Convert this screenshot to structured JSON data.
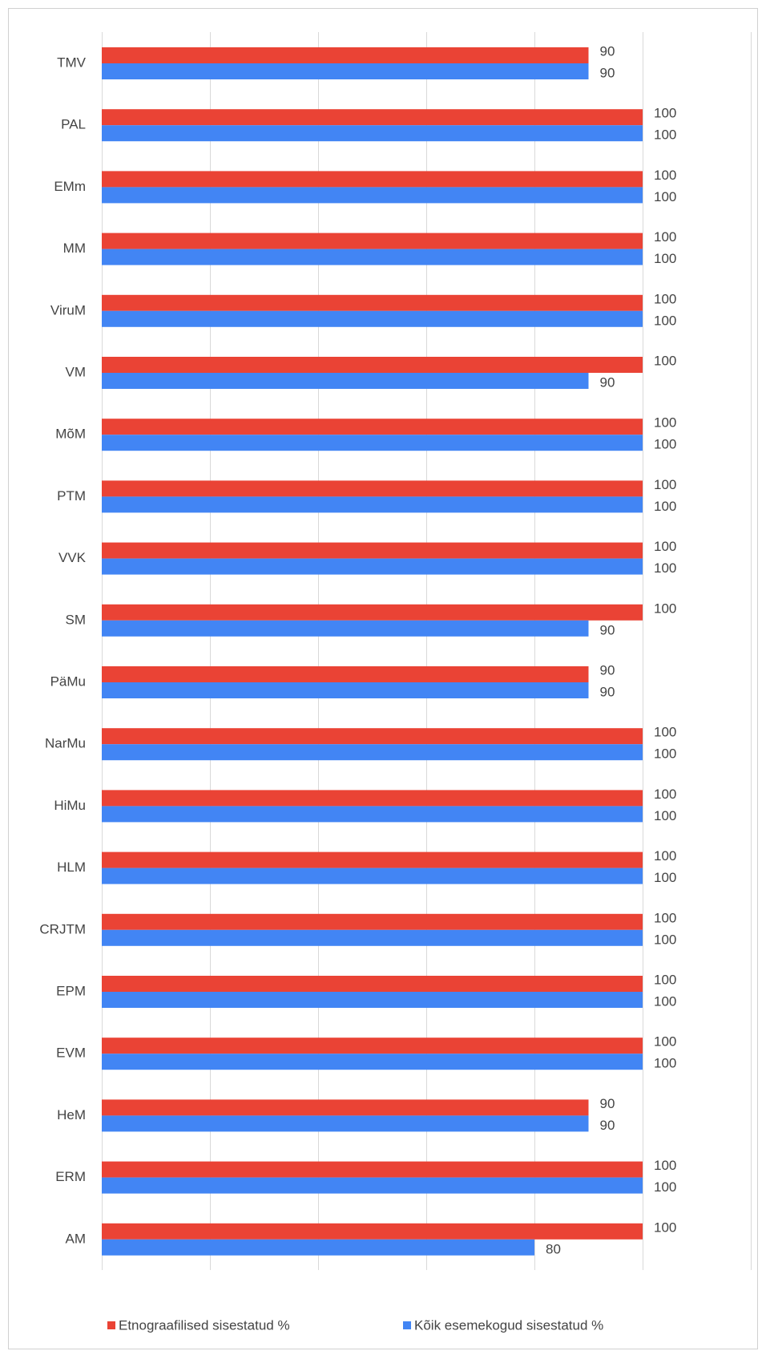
{
  "chart_data": {
    "type": "hbar",
    "categories": [
      "TMV",
      "PAL",
      "EMm",
      "MM",
      "ViruM",
      "VM",
      "MõM",
      "PTM",
      "VVK",
      "SM",
      "PäMu",
      "NarMu",
      "HiMu",
      "HLM",
      "CRJTM",
      "EPM",
      "EVM",
      "HeM",
      "ERM",
      "AM"
    ],
    "series": [
      {
        "name": "Etnograafilised sisestatud %",
        "color": "#ea4335",
        "values": [
          90,
          100,
          100,
          100,
          100,
          100,
          100,
          100,
          100,
          100,
          90,
          100,
          100,
          100,
          100,
          100,
          100,
          90,
          100,
          100
        ]
      },
      {
        "name": "Kõik esemekogud sisestatud %",
        "color": "#4285f4",
        "values": [
          90,
          100,
          100,
          100,
          100,
          90,
          100,
          100,
          100,
          90,
          90,
          100,
          100,
          100,
          100,
          100,
          100,
          90,
          100,
          80
        ]
      }
    ],
    "xlim": [
      0,
      120
    ],
    "xticks": [
      0,
      20,
      40,
      60,
      80,
      100,
      120
    ],
    "grid": true,
    "legend": "bottom"
  }
}
